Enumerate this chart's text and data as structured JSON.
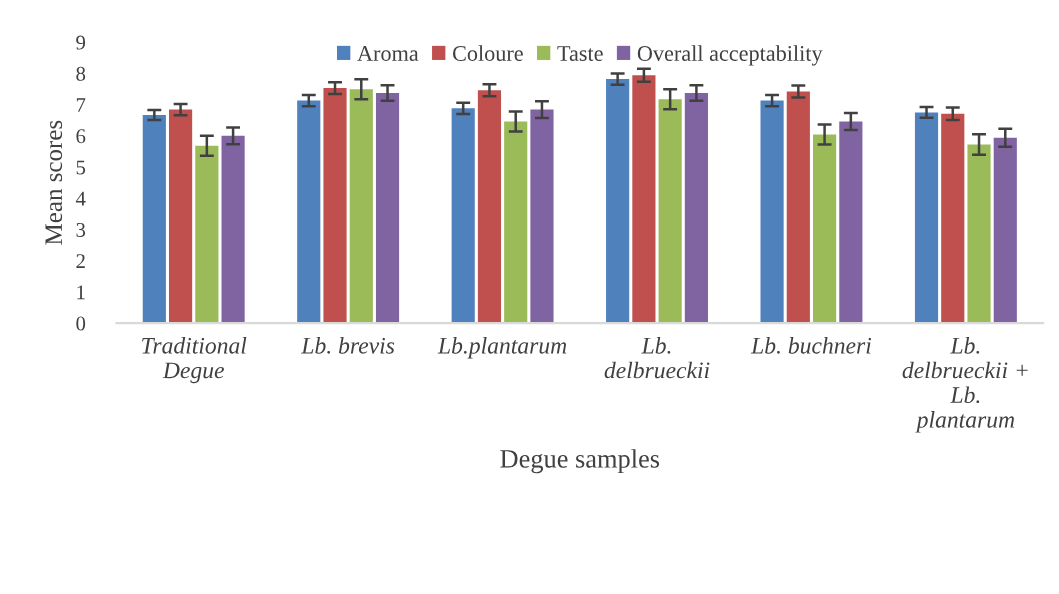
{
  "chart_data": {
    "type": "bar",
    "xlabel": "Degue samples",
    "ylabel": "Mean scores",
    "categories": [
      "Traditional\nDegue",
      "Lb. brevis",
      "Lb.plantarum",
      "Lb.\ndelbrueckii",
      "Lb. buchneri",
      "Lb.\ndelbrueckii +\nLb.\nplantarum"
    ],
    "series": [
      {
        "name": "Aroma",
        "color": "#4f81bd",
        "values": [
          6.67,
          7.13,
          6.88,
          7.82,
          7.13,
          6.75
        ],
        "errors": [
          0.16,
          0.18,
          0.18,
          0.18,
          0.18,
          0.17
        ]
      },
      {
        "name": "Coloure",
        "color": "#c0504d",
        "values": [
          6.84,
          7.53,
          7.46,
          7.94,
          7.42,
          6.71
        ],
        "errors": [
          0.18,
          0.19,
          0.19,
          0.21,
          0.19,
          0.2
        ]
      },
      {
        "name": "Taste",
        "color": "#9bbb59",
        "values": [
          5.68,
          7.49,
          6.46,
          7.17,
          6.04,
          5.72
        ],
        "errors": [
          0.32,
          0.32,
          0.32,
          0.32,
          0.32,
          0.33
        ]
      },
      {
        "name": "Overall acceptability",
        "color": "#8064a2",
        "values": [
          6.0,
          7.37,
          6.84,
          7.37,
          6.46,
          5.94
        ],
        "errors": [
          0.27,
          0.25,
          0.27,
          0.25,
          0.27,
          0.29
        ]
      }
    ],
    "ylim": [
      0,
      9
    ],
    "yticks": [
      0,
      1,
      2,
      3,
      4,
      5,
      6,
      7,
      8,
      9
    ],
    "grid": false,
    "legend": "top"
  }
}
